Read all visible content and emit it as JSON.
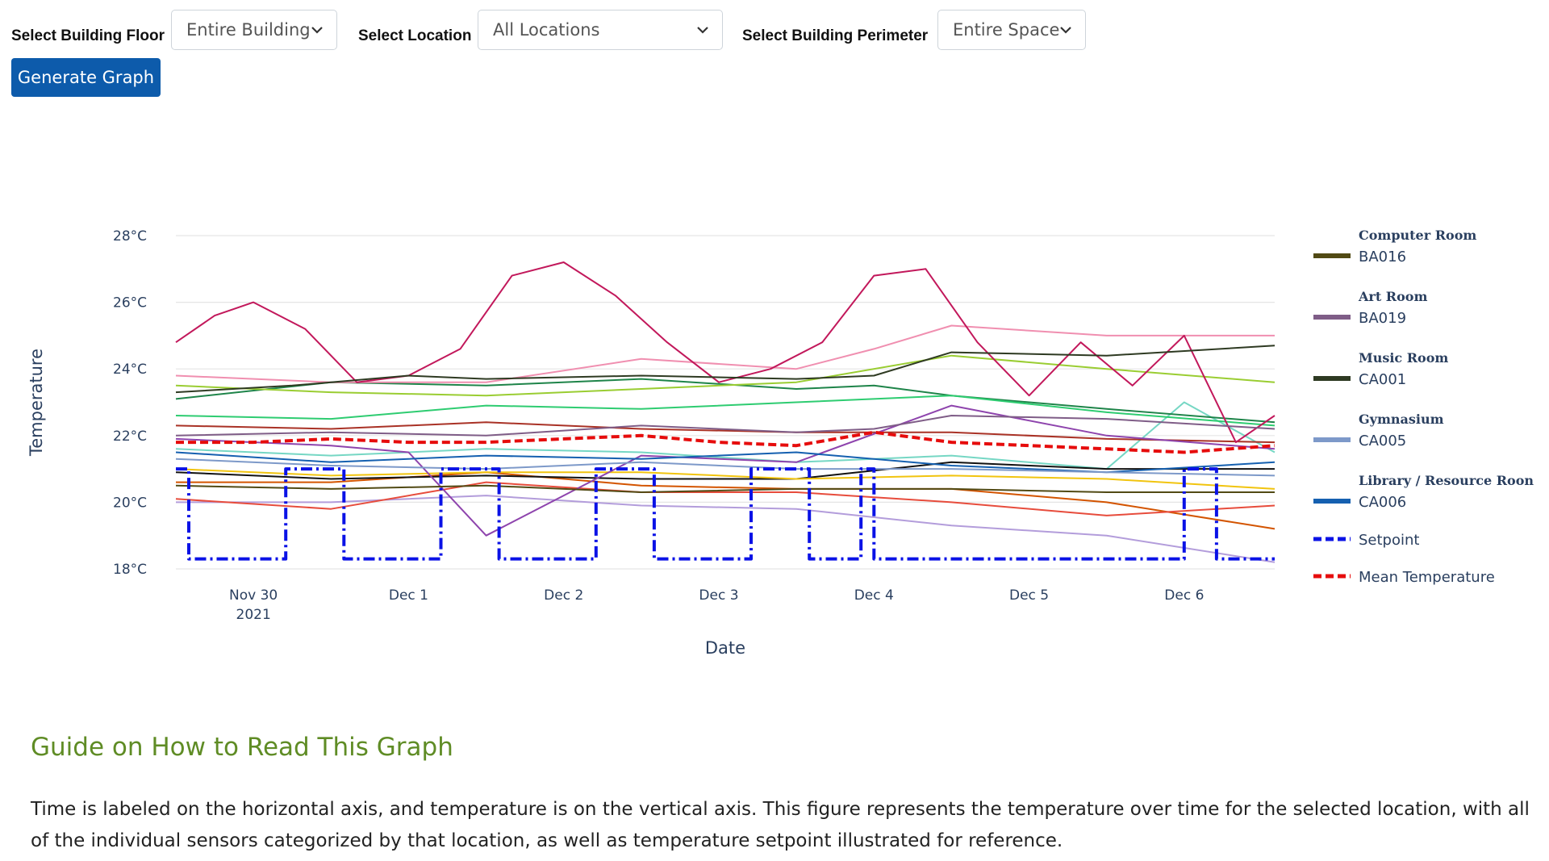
{
  "controls": {
    "floor_label": "Select Building Floor",
    "floor_value": "Entire Building",
    "location_label": "Select Location",
    "location_value": "All Locations",
    "perimeter_label": "Select Building Perimeter",
    "perimeter_value": "Entire Space",
    "generate_label": "Generate Graph"
  },
  "chart_data": {
    "type": "line",
    "title": "",
    "xlabel": "Date",
    "ylabel": "Temperature",
    "x_tick_labels": [
      "Nov 30",
      "Dec 1",
      "Dec 2",
      "Dec 3",
      "Dec 4",
      "Dec 5",
      "Dec 6"
    ],
    "x_tick_sublabel": "2021",
    "y_tick_labels": [
      "18°C",
      "20°C",
      "22°C",
      "24°C",
      "26°C",
      "28°C"
    ],
    "y_ticks": [
      18,
      20,
      22,
      24,
      26,
      28
    ],
    "ylim": [
      18,
      28
    ],
    "xlim": [
      "2021-11-29 12:00",
      "2021-12-06 14:00"
    ],
    "grid": "horizontal",
    "legend_position": "right",
    "legend_groups": [
      {
        "group": "Computer Room",
        "items": [
          {
            "name": "BA016",
            "color": "#514a14"
          }
        ]
      },
      {
        "group": "Art Room",
        "items": [
          {
            "name": "BA019",
            "color": "#7f5d87"
          }
        ]
      },
      {
        "group": "Music Room",
        "items": [
          {
            "name": "CA001",
            "color": "#2e3a22"
          }
        ]
      },
      {
        "group": "Gymnasium",
        "items": [
          {
            "name": "CA005",
            "color": "#7d99c9"
          }
        ]
      },
      {
        "group": "Library / Resource Roon",
        "items": [
          {
            "name": "CA006",
            "color": "#1560b0"
          }
        ]
      },
      {
        "group": "",
        "items": [
          {
            "name": "Setpoint",
            "color": "#0a12e6",
            "dash": true
          }
        ]
      },
      {
        "group": "",
        "items": [
          {
            "name": "Mean Temperature",
            "color": "#e60c0c",
            "dash": true
          }
        ]
      }
    ],
    "series": [
      {
        "name": "Setpoint",
        "color": "#0a12e6",
        "dash": true,
        "width": 4,
        "x": [
          "2021-11-29 12:00",
          "2021-11-29 14:00",
          "2021-11-29 14:00",
          "2021-11-30 05:00",
          "2021-11-30 05:00",
          "2021-11-30 14:00",
          "2021-11-30 14:00",
          "2021-12-01 05:00",
          "2021-12-01 05:00",
          "2021-12-01 14:00",
          "2021-12-01 14:00",
          "2021-12-02 05:00",
          "2021-12-02 05:00",
          "2021-12-02 14:00",
          "2021-12-02 14:00",
          "2021-12-03 05:00",
          "2021-12-03 05:00",
          "2021-12-03 14:00",
          "2021-12-03 14:00",
          "2021-12-03 22:00",
          "2021-12-03 22:00",
          "2021-12-04 00:00",
          "2021-12-04 00:00",
          "2021-12-06 00:00",
          "2021-12-06 00:00",
          "2021-12-06 05:00",
          "2021-12-06 05:00",
          "2021-12-06 14:00"
        ],
        "y": [
          21,
          21,
          18.3,
          18.3,
          21,
          21,
          18.3,
          18.3,
          21,
          21,
          18.3,
          18.3,
          21,
          21,
          18.3,
          18.3,
          21,
          21,
          18.3,
          18.3,
          21,
          21,
          18.3,
          18.3,
          21,
          21,
          18.3,
          18.3
        ]
      },
      {
        "name": "Mean Temperature",
        "color": "#e60c0c",
        "dash": true,
        "width": 4,
        "x": [
          "2021-11-29 12:00",
          "2021-11-30 00:00",
          "2021-11-30 12:00",
          "2021-12-01 00:00",
          "2021-12-01 12:00",
          "2021-12-02 00:00",
          "2021-12-02 12:00",
          "2021-12-03 00:00",
          "2021-12-03 12:00",
          "2021-12-04 00:00",
          "2021-12-04 12:00",
          "2021-12-05 00:00",
          "2021-12-05 12:00",
          "2021-12-06 00:00",
          "2021-12-06 14:00"
        ],
        "y": [
          21.8,
          21.8,
          21.9,
          21.8,
          21.8,
          21.9,
          22.0,
          21.8,
          21.7,
          22.1,
          21.8,
          21.7,
          21.6,
          21.5,
          21.7
        ]
      },
      {
        "name": "BA016",
        "color": "#514a14",
        "width": 2,
        "x": [
          "2021-11-29 12:00",
          "2021-11-30 12:00",
          "2021-12-01 12:00",
          "2021-12-02 12:00",
          "2021-12-03 12:00",
          "2021-12-04 12:00",
          "2021-12-05 12:00",
          "2021-12-06 14:00"
        ],
        "y": [
          20.5,
          20.4,
          20.5,
          20.3,
          20.4,
          20.4,
          20.3,
          20.3
        ]
      },
      {
        "name": "BA019",
        "color": "#7f5d87",
        "width": 2,
        "x": [
          "2021-11-29 12:00",
          "2021-11-30 12:00",
          "2021-12-01 12:00",
          "2021-12-02 12:00",
          "2021-12-03 12:00",
          "2021-12-04 00:00",
          "2021-12-04 12:00",
          "2021-12-05 12:00",
          "2021-12-06 14:00"
        ],
        "y": [
          22.0,
          22.1,
          22.0,
          22.3,
          22.1,
          22.2,
          22.6,
          22.5,
          22.2
        ]
      },
      {
        "name": "CA001",
        "color": "#2e3a22",
        "width": 2,
        "x": [
          "2021-11-29 12:00",
          "2021-11-30 06:00",
          "2021-12-01 00:00",
          "2021-12-01 12:00",
          "2021-12-02 12:00",
          "2021-12-03 12:00",
          "2021-12-04 00:00",
          "2021-12-04 12:00",
          "2021-12-05 12:00",
          "2021-12-06 14:00"
        ],
        "y": [
          23.3,
          23.5,
          23.8,
          23.7,
          23.8,
          23.7,
          23.8,
          24.5,
          24.4,
          24.7
        ]
      },
      {
        "name": "CA005",
        "color": "#7d99c9",
        "width": 2,
        "x": [
          "2021-11-29 12:00",
          "2021-11-30 12:00",
          "2021-12-01 12:00",
          "2021-12-02 12:00",
          "2021-12-03 12:00",
          "2021-12-04 12:00",
          "2021-12-05 12:00",
          "2021-12-06 14:00"
        ],
        "y": [
          21.3,
          21.1,
          21.0,
          21.2,
          21.0,
          21.0,
          20.9,
          20.8
        ]
      },
      {
        "name": "CA006",
        "color": "#1560b0",
        "width": 2,
        "x": [
          "2021-11-29 12:00",
          "2021-11-30 12:00",
          "2021-12-01 12:00",
          "2021-12-02 12:00",
          "2021-12-03 12:00",
          "2021-12-04 12:00",
          "2021-12-05 12:00",
          "2021-12-06 14:00"
        ],
        "y": [
          21.5,
          21.2,
          21.4,
          21.3,
          21.5,
          21.1,
          20.9,
          21.2
        ]
      },
      {
        "name": "",
        "color": "#c2185b",
        "width": 2,
        "x": [
          "2021-11-29 12:00",
          "2021-11-29 18:00",
          "2021-11-30 00:00",
          "2021-11-30 08:00",
          "2021-11-30 16:00",
          "2021-12-01 00:00",
          "2021-12-01 08:00",
          "2021-12-01 16:00",
          "2021-12-02 00:00",
          "2021-12-02 08:00",
          "2021-12-02 16:00",
          "2021-12-03 00:00",
          "2021-12-03 08:00",
          "2021-12-03 16:00",
          "2021-12-04 00:00",
          "2021-12-04 08:00",
          "2021-12-04 16:00",
          "2021-12-05 00:00",
          "2021-12-05 08:00",
          "2021-12-05 16:00",
          "2021-12-06 00:00",
          "2021-12-06 08:00",
          "2021-12-06 14:00"
        ],
        "y": [
          24.8,
          25.6,
          26.0,
          25.2,
          23.6,
          23.8,
          24.6,
          26.8,
          27.2,
          26.2,
          24.8,
          23.6,
          24.0,
          24.8,
          26.8,
          27.0,
          24.8,
          23.2,
          24.8,
          23.5,
          25.0,
          21.8,
          22.6
        ]
      },
      {
        "name": "",
        "color": "#f08fb0",
        "width": 2,
        "x": [
          "2021-11-29 12:00",
          "2021-11-30 12:00",
          "2021-12-01 12:00",
          "2021-12-02 12:00",
          "2021-12-03 12:00",
          "2021-12-04 00:00",
          "2021-12-04 12:00",
          "2021-12-05 12:00",
          "2021-12-06 14:00"
        ],
        "y": [
          23.8,
          23.6,
          23.6,
          24.3,
          24.0,
          24.6,
          25.3,
          25.0,
          25.0
        ]
      },
      {
        "name": "",
        "color": "#9acd32",
        "width": 2,
        "x": [
          "2021-11-29 12:00",
          "2021-11-30 12:00",
          "2021-12-01 12:00",
          "2021-12-02 12:00",
          "2021-12-03 12:00",
          "2021-12-04 12:00",
          "2021-12-05 12:00",
          "2021-12-06 14:00"
        ],
        "y": [
          23.5,
          23.3,
          23.2,
          23.4,
          23.6,
          24.4,
          24.0,
          23.6
        ]
      },
      {
        "name": "",
        "color": "#2ecc71",
        "width": 2,
        "x": [
          "2021-11-29 12:00",
          "2021-11-30 12:00",
          "2021-12-01 12:00",
          "2021-12-02 12:00",
          "2021-12-03 12:00",
          "2021-12-04 12:00",
          "2021-12-05 12:00",
          "2021-12-06 14:00"
        ],
        "y": [
          22.6,
          22.5,
          22.9,
          22.8,
          23.0,
          23.2,
          22.7,
          22.3
        ]
      },
      {
        "name": "",
        "color": "#8e44ad",
        "width": 2,
        "x": [
          "2021-11-29 12:00",
          "2021-11-30 12:00",
          "2021-12-01 00:00",
          "2021-12-01 12:00",
          "2021-12-02 12:00",
          "2021-12-03 12:00",
          "2021-12-04 12:00",
          "2021-12-05 12:00",
          "2021-12-06 14:00"
        ],
        "y": [
          21.9,
          21.7,
          21.5,
          19.0,
          21.4,
          21.2,
          22.9,
          22.0,
          21.6
        ]
      },
      {
        "name": "",
        "color": "#e74c3c",
        "width": 2,
        "x": [
          "2021-11-29 12:00",
          "2021-11-30 12:00",
          "2021-12-01 12:00",
          "2021-12-02 12:00",
          "2021-12-03 12:00",
          "2021-12-04 12:00",
          "2021-12-05 12:00",
          "2021-12-06 14:00"
        ],
        "y": [
          20.1,
          19.8,
          20.6,
          20.3,
          20.3,
          20.0,
          19.6,
          19.9
        ]
      },
      {
        "name": "",
        "color": "#b39ddb",
        "width": 2,
        "x": [
          "2021-11-29 12:00",
          "2021-11-30 12:00",
          "2021-12-01 12:00",
          "2021-12-02 12:00",
          "2021-12-03 12:00",
          "2021-12-04 12:00",
          "2021-12-05 12:00",
          "2021-12-06 14:00"
        ],
        "y": [
          20.0,
          20.0,
          20.2,
          19.9,
          19.8,
          19.3,
          19.0,
          18.2
        ]
      },
      {
        "name": "",
        "color": "#1e8449",
        "width": 2,
        "x": [
          "2021-11-29 12:00",
          "2021-11-30 12:00",
          "2021-12-01 12:00",
          "2021-12-02 12:00",
          "2021-12-03 12:00",
          "2021-12-04 00:00",
          "2021-12-04 12:00",
          "2021-12-05 12:00",
          "2021-12-06 14:00"
        ],
        "y": [
          23.1,
          23.6,
          23.5,
          23.7,
          23.4,
          23.5,
          23.2,
          22.8,
          22.4
        ]
      },
      {
        "name": "",
        "color": "#f1c40f",
        "width": 2,
        "x": [
          "2021-11-29 12:00",
          "2021-11-30 12:00",
          "2021-12-01 12:00",
          "2021-12-02 12:00",
          "2021-12-03 12:00",
          "2021-12-04 12:00",
          "2021-12-05 12:00",
          "2021-12-06 14:00"
        ],
        "y": [
          21.0,
          20.8,
          20.9,
          20.9,
          20.7,
          20.8,
          20.7,
          20.4
        ]
      },
      {
        "name": "",
        "color": "#a93226",
        "width": 2,
        "x": [
          "2021-11-29 12:00",
          "2021-11-30 12:00",
          "2021-12-01 12:00",
          "2021-12-02 12:00",
          "2021-12-03 12:00",
          "2021-12-04 12:00",
          "2021-12-05 12:00",
          "2021-12-06 14:00"
        ],
        "y": [
          22.3,
          22.2,
          22.4,
          22.2,
          22.1,
          22.1,
          21.9,
          21.8
        ]
      },
      {
        "name": "",
        "color": "#111111",
        "width": 2,
        "x": [
          "2021-11-29 12:00",
          "2021-11-30 12:00",
          "2021-12-01 12:00",
          "2021-12-02 12:00",
          "2021-12-03 12:00",
          "2021-12-04 12:00",
          "2021-12-05 12:00",
          "2021-12-06 14:00"
        ],
        "y": [
          20.9,
          20.7,
          20.8,
          20.7,
          20.7,
          21.2,
          21.0,
          21.0
        ]
      },
      {
        "name": "",
        "color": "#76d7c4",
        "width": 2,
        "x": [
          "2021-11-29 12:00",
          "2021-11-30 12:00",
          "2021-12-01 12:00",
          "2021-12-02 12:00",
          "2021-12-03 12:00",
          "2021-12-04 12:00",
          "2021-12-05 12:00",
          "2021-12-06 00:00",
          "2021-12-06 14:00"
        ],
        "y": [
          21.6,
          21.4,
          21.6,
          21.5,
          21.2,
          21.4,
          21.0,
          23.0,
          21.5
        ]
      },
      {
        "name": "",
        "color": "#d35400",
        "width": 2,
        "x": [
          "2021-11-29 12:00",
          "2021-11-30 12:00",
          "2021-12-01 12:00",
          "2021-12-02 12:00",
          "2021-12-03 12:00",
          "2021-12-04 12:00",
          "2021-12-05 12:00",
          "2021-12-06 14:00"
        ],
        "y": [
          20.6,
          20.6,
          20.9,
          20.5,
          20.4,
          20.4,
          20.0,
          19.2
        ]
      }
    ]
  },
  "guide": {
    "title": "Guide on How to Read This Graph",
    "text": "Time is labeled on the horizontal axis, and temperature is on the vertical axis. This figure represents the temperature over time for the selected location, with all of the individual sensors categorized by that location, as well as temperature setpoint illustrated for reference."
  }
}
